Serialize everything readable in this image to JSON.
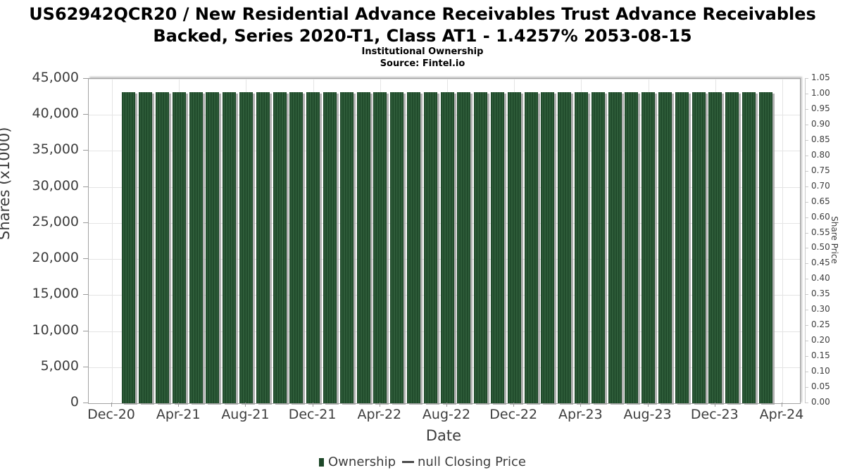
{
  "header": {
    "title": "US62942QCR20 / New Residential Advance Receivables Trust Advance Receivables Backed, Series 2020-T1, Class AT1 - 1.4257% 2053-08-15",
    "subtitle": "Institutional Ownership",
    "source": "Source: Fintel.io"
  },
  "legend": {
    "ownership_label": "Ownership",
    "price_label": "null Closing Price"
  },
  "colors": {
    "bar_base": "#2f5d3a",
    "bar_stripe": "#1d4728",
    "bar_shadow": "#9e9e9e",
    "grid": "#e4e4e4",
    "axis_text": "#3d3d3d",
    "plot_border": "#a3a3a3",
    "right_axis": "#c9c9c9",
    "title_text": "#000000"
  },
  "chart_data": {
    "type": "bar",
    "title": "US62942QCR20 / New Residential Advance Receivables Trust Advance Receivables Backed, Series 2020-T1, Class AT1 - 1.4257% 2053-08-15",
    "subtitle": "Institutional Ownership",
    "source": "Source: Fintel.io",
    "xlabel": "Date",
    "ylabel": "Shares (x1000)",
    "ylabel_right": "Share Price",
    "ylim": [
      0,
      45000
    ],
    "ylim_right": [
      0,
      1.05
    ],
    "grid": true,
    "legend_position": "bottom",
    "y_ticks": [
      "0",
      "5,000",
      "10,000",
      "15,000",
      "20,000",
      "25,000",
      "30,000",
      "35,000",
      "40,000",
      "45,000"
    ],
    "y_ticks_right": [
      "0.00",
      "0.05",
      "0.10",
      "0.15",
      "0.20",
      "0.25",
      "0.30",
      "0.35",
      "0.40",
      "0.45",
      "0.50",
      "0.55",
      "0.60",
      "0.65",
      "0.70",
      "0.75",
      "0.80",
      "0.85",
      "0.90",
      "0.95",
      "1.00",
      "1.05"
    ],
    "x_tick_labels": [
      "Dec-20",
      "Apr-21",
      "Aug-21",
      "Dec-21",
      "Apr-22",
      "Aug-22",
      "Dec-22",
      "Apr-23",
      "Aug-23",
      "Dec-23",
      "Apr-24"
    ],
    "x_tick_month_index": [
      0,
      4,
      8,
      12,
      16,
      20,
      24,
      28,
      32,
      36,
      40
    ],
    "months_total": 40,
    "categories": [
      "Jan-21",
      "Feb-21",
      "Mar-21",
      "Apr-21",
      "May-21",
      "Jun-21",
      "Jul-21",
      "Aug-21",
      "Sep-21",
      "Oct-21",
      "Nov-21",
      "Dec-21",
      "Jan-22",
      "Feb-22",
      "Mar-22",
      "Apr-22",
      "May-22",
      "Jun-22",
      "Jul-22",
      "Aug-22",
      "Sep-22",
      "Oct-22",
      "Nov-22",
      "Dec-22",
      "Jan-23",
      "Feb-23",
      "Mar-23",
      "Apr-23",
      "May-23",
      "Jun-23",
      "Jul-23",
      "Aug-23",
      "Sep-23",
      "Oct-23",
      "Nov-23",
      "Dec-23",
      "Jan-24",
      "Feb-24",
      "Mar-24"
    ],
    "series": [
      {
        "name": "Ownership",
        "type": "bar",
        "color": "#2f5d3a",
        "values": [
          43100,
          43100,
          43100,
          43100,
          43100,
          43100,
          43100,
          43100,
          43100,
          43100,
          43100,
          43100,
          43100,
          43100,
          43100,
          43100,
          43100,
          43100,
          43100,
          43100,
          43100,
          43100,
          43100,
          43100,
          43100,
          43100,
          43100,
          43100,
          43100,
          43100,
          43100,
          43100,
          43100,
          43100,
          43100,
          43100,
          43100,
          43100,
          43100
        ]
      },
      {
        "name": "null Closing Price",
        "type": "line",
        "color": "#4a4a4a",
        "values": []
      }
    ]
  }
}
